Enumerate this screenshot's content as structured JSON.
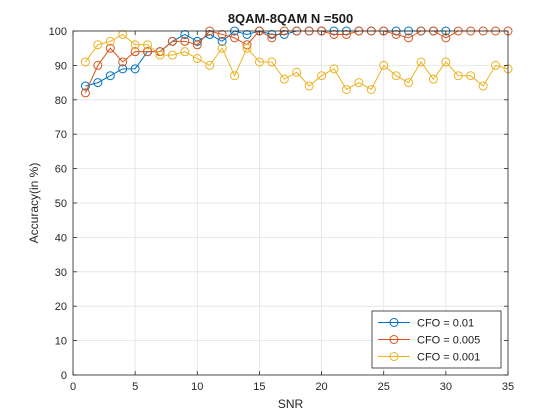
{
  "chart_data": {
    "type": "line",
    "title": "8QAM-8QAM N =500",
    "xlabel": "SNR",
    "ylabel": "Accuracy(in %)",
    "xlim": [
      0,
      35
    ],
    "ylim": [
      0,
      100
    ],
    "xticks": [
      0,
      5,
      10,
      15,
      20,
      25,
      30,
      35
    ],
    "yticks": [
      0,
      10,
      20,
      30,
      40,
      50,
      60,
      70,
      80,
      90,
      100
    ],
    "grid": true,
    "legend_position": "bottom-right",
    "series": [
      {
        "name": "CFO = 0.01",
        "color": "#0072BD",
        "marker": "circle",
        "x": [
          1,
          2,
          3,
          4,
          5,
          6,
          7,
          8,
          9,
          10,
          11,
          12,
          13,
          14,
          15,
          16,
          17,
          18,
          19,
          20,
          21,
          22,
          23,
          24,
          25,
          26,
          27,
          28,
          29,
          30
        ],
        "y": [
          84,
          85,
          87,
          89,
          89,
          94,
          94,
          97,
          99,
          97,
          99,
          97,
          100,
          99,
          100,
          99,
          99,
          100,
          100,
          100,
          100,
          100,
          100,
          100,
          100,
          100,
          100,
          100,
          100,
          100
        ]
      },
      {
        "name": "CFO = 0.005",
        "color": "#D95319",
        "marker": "circle",
        "x": [
          1,
          2,
          3,
          4,
          5,
          6,
          7,
          8,
          9,
          10,
          11,
          12,
          13,
          14,
          15,
          16,
          17,
          18,
          19,
          20,
          21,
          22,
          23,
          24,
          25,
          26,
          27,
          28,
          29,
          30,
          31,
          32,
          33,
          34,
          35
        ],
        "y": [
          82,
          90,
          95,
          91,
          94,
          94,
          94,
          97,
          97,
          96,
          100,
          99,
          98,
          96,
          100,
          98,
          100,
          100,
          100,
          100,
          99,
          99,
          100,
          100,
          100,
          99,
          98,
          100,
          100,
          98,
          100,
          100,
          100,
          100,
          100
        ]
      },
      {
        "name": "CFO = 0.001",
        "color": "#EDB120",
        "marker": "circle",
        "x": [
          1,
          2,
          3,
          4,
          5,
          6,
          7,
          8,
          9,
          10,
          11,
          12,
          13,
          14,
          15,
          16,
          17,
          18,
          19,
          20,
          21,
          22,
          23,
          24,
          25,
          26,
          27,
          28,
          29,
          30,
          31,
          32,
          33,
          34,
          35
        ],
        "y": [
          91,
          96,
          97,
          99,
          96,
          96,
          93,
          93,
          94,
          92,
          90,
          95,
          87,
          95,
          91,
          91,
          86,
          88,
          84,
          87,
          89,
          83,
          85,
          83,
          90,
          87,
          85,
          91,
          86,
          91,
          87,
          87,
          84,
          90,
          89
        ]
      }
    ]
  }
}
